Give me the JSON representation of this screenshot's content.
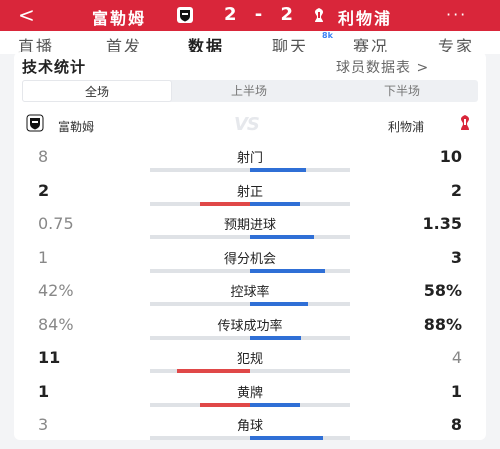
{
  "header": {
    "back": "<",
    "home_team": "富勒姆",
    "away_team": "利物浦",
    "score": "2 - 2",
    "more": "···"
  },
  "tabs": [
    {
      "label": "直播"
    },
    {
      "label": "首发"
    },
    {
      "label": "数据"
    },
    {
      "label": "聊天"
    },
    {
      "label": "赛况"
    },
    {
      "label": "专家"
    }
  ],
  "chat_badge": "8k",
  "section": {
    "title": "技术统计",
    "player_link": "球员数据表 >"
  },
  "segments": [
    "全场",
    "上半场",
    "下半场"
  ],
  "teams_row": {
    "home": "富勒姆",
    "away": "利物浦",
    "vs": "VS"
  },
  "colors": {
    "brand": "#d9263a",
    "home_bar": "#e04848",
    "away_bar": "#2f6fd6",
    "track": "#dfe2e6"
  },
  "stats": [
    {
      "label": "射门",
      "home": "8",
      "away": "10",
      "home_share": 0.444,
      "away_share": 0.556,
      "leader": "away"
    },
    {
      "label": "射正",
      "home": "2",
      "away": "2",
      "home_share": 0.5,
      "away_share": 0.5,
      "leader": "both"
    },
    {
      "label": "预期进球",
      "home": "0.75",
      "away": "1.35",
      "home_share": 0.357,
      "away_share": 0.643,
      "leader": "away"
    },
    {
      "label": "得分机会",
      "home": "1",
      "away": "3",
      "home_share": 0.25,
      "away_share": 0.75,
      "leader": "away"
    },
    {
      "label": "控球率",
      "home": "42%",
      "away": "58%",
      "home_share": 0.42,
      "away_share": 0.58,
      "leader": "away"
    },
    {
      "label": "传球成功率",
      "home": "84%",
      "away": "88%",
      "home_share": 0.488,
      "away_share": 0.512,
      "leader": "away"
    },
    {
      "label": "犯规",
      "home": "11",
      "away": "4",
      "home_share": 0.733,
      "away_share": 0.267,
      "leader": "home"
    },
    {
      "label": "黄牌",
      "home": "1",
      "away": "1",
      "home_share": 0.5,
      "away_share": 0.5,
      "leader": "both"
    },
    {
      "label": "角球",
      "home": "3",
      "away": "8",
      "home_share": 0.273,
      "away_share": 0.727,
      "leader": "away"
    }
  ]
}
